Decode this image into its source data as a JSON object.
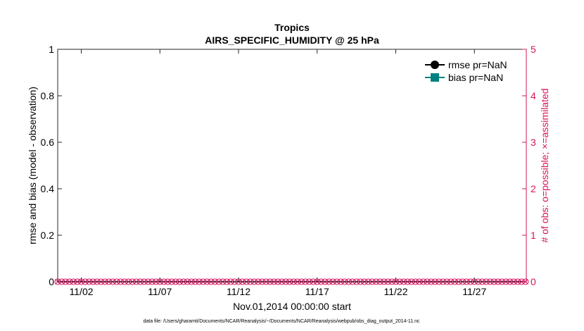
{
  "chart_data": {
    "type": "line",
    "title": "Tropics",
    "subtitle": "AIRS_SPECIFIC_HUMIDITY @ 25 hPa",
    "xlabel": "Nov.01,2014 00:00:00 start",
    "ylabel_left": "rmse and bias (model - observation)",
    "ylabel_right": "# of obs: o=possible; ×=assimilated",
    "footer": "data file: /Users/gharamti/Documents/NCAR/Reanalysis/~/Documents/NCAR/Reanalysis/webpub/obs_diag_output_2014-11.nc",
    "x_range_days": [
      0.5,
      30.3
    ],
    "x_tick_days": [
      2,
      7,
      12,
      17,
      22,
      27
    ],
    "x_tick_labels": [
      "11/02",
      "11/07",
      "11/12",
      "11/17",
      "11/22",
      "11/27"
    ],
    "ylim_left": [
      0,
      1
    ],
    "y_ticks_left": [
      0,
      0.2,
      0.4,
      0.6,
      0.8,
      1
    ],
    "y_tick_labels_left": [
      "0",
      "0.2",
      "0.4",
      "0.6",
      "0.8",
      "1"
    ],
    "ylim_right": [
      0,
      5
    ],
    "y_ticks_right": [
      0,
      1,
      2,
      3,
      4,
      5
    ],
    "y_tick_labels_right": [
      "0",
      "1",
      "2",
      "3",
      "4",
      "5"
    ],
    "legend_position": "top-right",
    "series": [
      {
        "name": "rmse pr=NaN",
        "color": "#000000",
        "marker": "circle",
        "values": []
      },
      {
        "name": "bias pr=NaN",
        "color": "#008080",
        "marker": "square",
        "values": []
      }
    ],
    "obs_counts": {
      "color": "#d6145f",
      "possible": {
        "marker": "circle",
        "value": 0,
        "x_start_day": 0.5,
        "x_step_day": 0.25,
        "count": 120
      },
      "assimilated": {
        "marker": "cross",
        "value": 0,
        "x_start_day": 0.5,
        "x_step_day": 0.25,
        "count": 120
      }
    },
    "colors": {
      "axis": "#262626",
      "right_axis": "#d6145f"
    }
  }
}
